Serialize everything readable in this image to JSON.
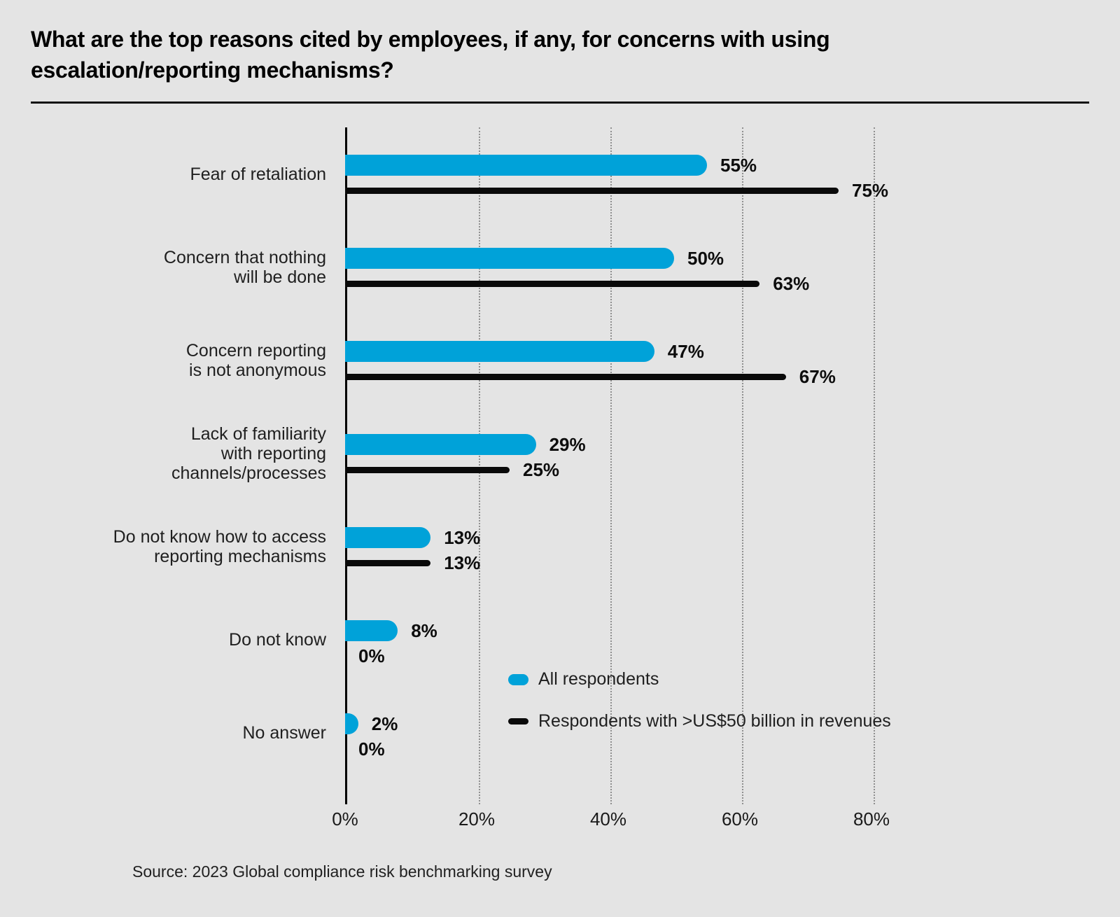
{
  "title": "What are the top reasons cited by employees, if any, for concerns with using escalation/reporting mechanisms?",
  "source": "Source: 2023 Global compliance risk benchmarking survey",
  "colors": {
    "all_respondents": "#00a2d9",
    "large_revenue": "#0a0a0a",
    "background": "#e4e4e4"
  },
  "legend": {
    "items": [
      {
        "label": "All respondents"
      },
      {
        "label": "Respondents with >US$50 billion in revenues"
      }
    ]
  },
  "chart_data": {
    "type": "bar",
    "orientation": "horizontal",
    "title": "What are the top reasons cited by employees, if any, for concerns with using escalation/reporting mechanisms?",
    "categories": [
      "Fear of retaliation",
      "Concern that nothing\nwill be done",
      "Concern reporting\nis not anonymous",
      "Lack of familiarity\nwith reporting\nchannels/processes",
      "Do not know how to access\nreporting mechanisms",
      "Do not know",
      "No answer"
    ],
    "series": [
      {
        "name": "All respondents",
        "values": [
          55,
          50,
          47,
          29,
          13,
          8,
          2
        ]
      },
      {
        "name": "Respondents with >US$50 billion in revenues",
        "values": [
          75,
          63,
          67,
          25,
          13,
          0,
          0
        ]
      }
    ],
    "value_suffix": "%",
    "x_ticks": [
      "0%",
      "20%",
      "40%",
      "60%",
      "80%"
    ],
    "xlim": [
      0,
      80
    ],
    "grid": "dotted-vertical",
    "legend_position": "inside-bottom-right"
  }
}
